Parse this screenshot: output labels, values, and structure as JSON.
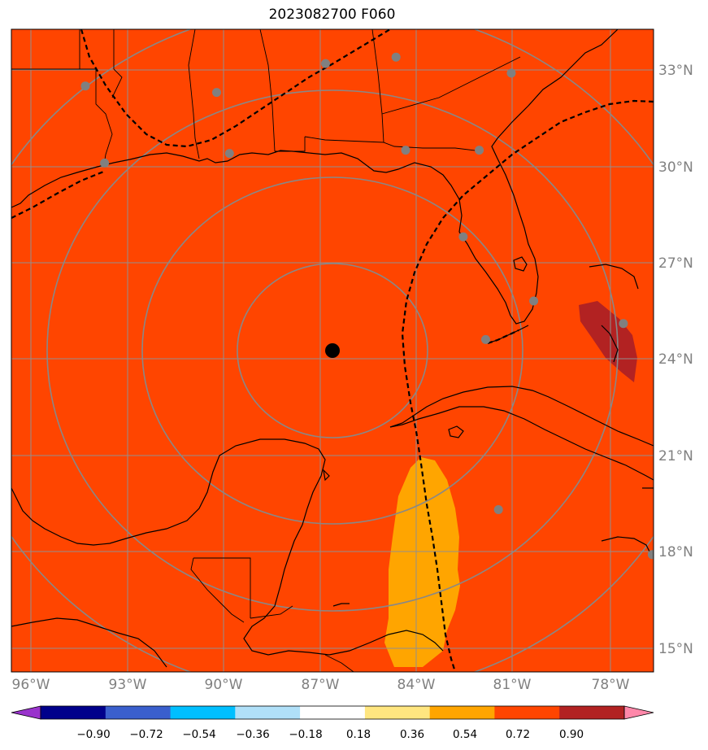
{
  "title": "2023082700 F060",
  "map": {
    "lon_range": [
      -97,
      -76.5
    ],
    "lat_range": [
      14.3,
      34.3
    ],
    "lon_labels": [
      "96°W",
      "93°W",
      "90°W",
      "87°W",
      "84°W",
      "81°W",
      "78°W"
    ],
    "lat_labels": [
      "33°N",
      "30°N",
      "27°N",
      "24°N",
      "21°N",
      "18°N",
      "15°N"
    ],
    "background_color": "#ff4500",
    "center_marker": {
      "label": "storm-center",
      "lon": -86.8,
      "lat": 24.3
    },
    "range_rings_deg": [
      3,
      6,
      9,
      12
    ],
    "stations": [
      {
        "lon": -94.3,
        "lat": 32.5
      },
      {
        "lon": -90.2,
        "lat": 32.3
      },
      {
        "lon": -86.8,
        "lat": 33.2
      },
      {
        "lon": -84.6,
        "lat": 33.4
      },
      {
        "lon": -81.0,
        "lat": 32.9
      },
      {
        "lon": -93.7,
        "lat": 30.1
      },
      {
        "lon": -89.8,
        "lat": 30.4
      },
      {
        "lon": -84.3,
        "lat": 30.5
      },
      {
        "lon": -82.0,
        "lat": 30.5
      },
      {
        "lon": -82.5,
        "lat": 27.8
      },
      {
        "lon": -80.3,
        "lat": 25.8
      },
      {
        "lon": -81.8,
        "lat": 24.6
      },
      {
        "lon": -77.5,
        "lat": 25.1
      },
      {
        "lon": -81.4,
        "lat": 19.3
      },
      {
        "lon": -76.6,
        "lat": 17.9
      }
    ]
  },
  "colorbar": {
    "ticks": [
      "−0.90",
      "−0.72",
      "−0.54",
      "−0.36",
      "−0.18",
      "0.18",
      "0.36",
      "0.54",
      "0.72",
      "0.90"
    ],
    "colors": [
      "#9933cc",
      "#00008b",
      "#3a5fcd",
      "#00bfff",
      "#b0e0f8",
      "#ffffff",
      "#ffe680",
      "#ffa500",
      "#ff4500",
      "#b22222",
      "#ff88aa"
    ]
  }
}
